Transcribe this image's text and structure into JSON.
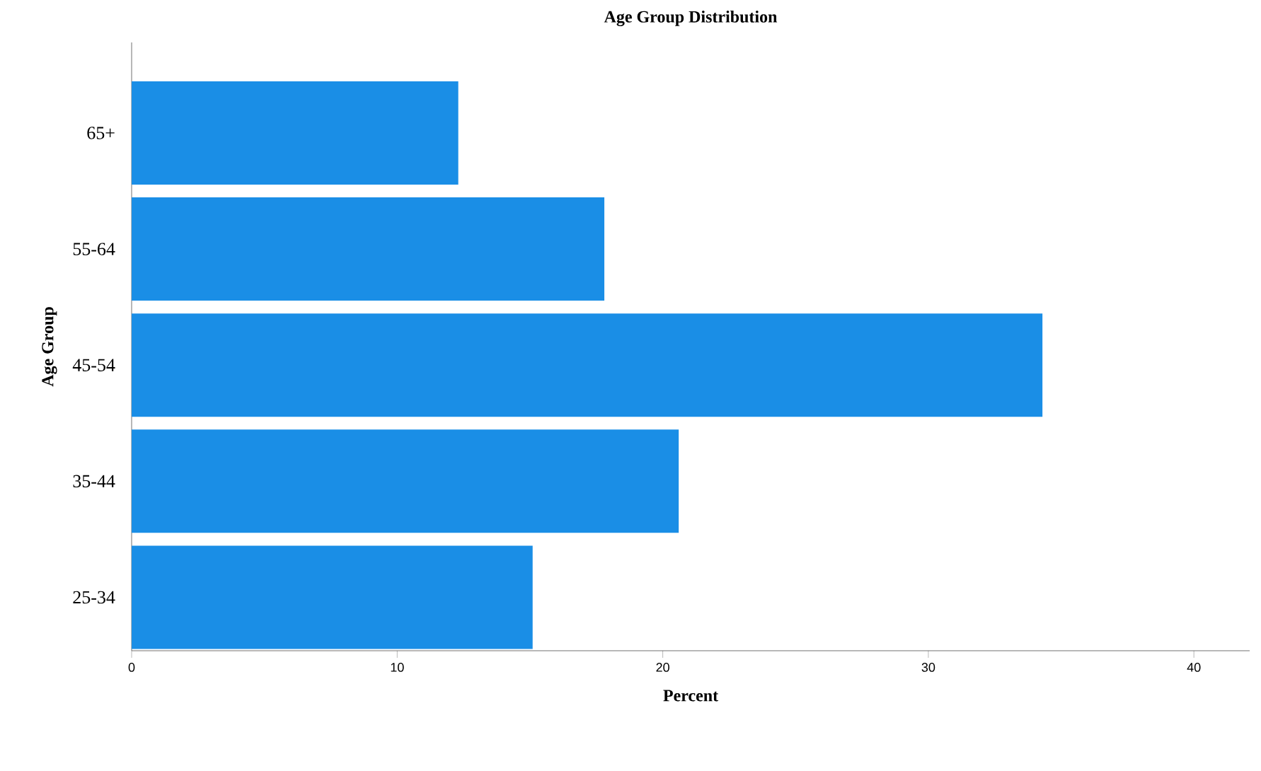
{
  "chart_data": {
    "type": "bar",
    "orientation": "horizontal",
    "title": "Age Group Distribution",
    "xlabel": "Percent",
    "ylabel": "Age Group",
    "categories": [
      "65+",
      "55-64",
      "45-54",
      "35-44",
      "25-34"
    ],
    "values": [
      12.3,
      17.8,
      34.3,
      20.6,
      15.1
    ],
    "color": "#1a8ee6",
    "xlim": [
      0,
      42.1
    ],
    "xticks": [
      0,
      10,
      20,
      30,
      40
    ]
  }
}
